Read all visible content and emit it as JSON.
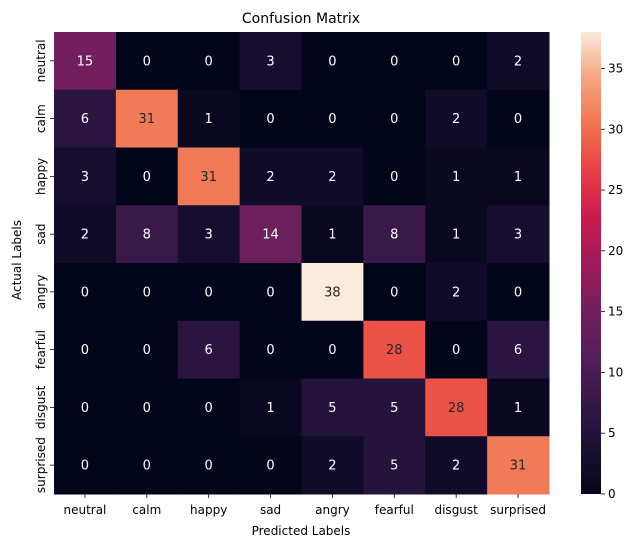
{
  "chart_data": {
    "type": "heatmap",
    "title": "Confusion Matrix",
    "xlabel": "Predicted Labels",
    "ylabel": "Actual Labels",
    "x_categories": [
      "neutral",
      "calm",
      "happy",
      "sad",
      "angry",
      "fearful",
      "disgust",
      "surprised"
    ],
    "y_categories": [
      "neutral",
      "calm",
      "happy",
      "sad",
      "angry",
      "fearful",
      "disgust",
      "surprised"
    ],
    "values": [
      [
        15,
        0,
        0,
        3,
        0,
        0,
        0,
        2
      ],
      [
        6,
        31,
        1,
        0,
        0,
        0,
        2,
        0
      ],
      [
        3,
        0,
        31,
        2,
        2,
        0,
        1,
        1
      ],
      [
        2,
        8,
        3,
        14,
        1,
        8,
        1,
        3
      ],
      [
        0,
        0,
        0,
        0,
        38,
        0,
        2,
        0
      ],
      [
        0,
        0,
        6,
        0,
        0,
        28,
        0,
        6
      ],
      [
        0,
        0,
        0,
        1,
        5,
        5,
        28,
        1
      ],
      [
        0,
        0,
        0,
        0,
        2,
        5,
        2,
        31
      ]
    ],
    "colorbar": {
      "min": 0,
      "max": 38,
      "ticks": [
        0,
        5,
        10,
        15,
        20,
        25,
        30,
        35
      ],
      "colormap": "rocket"
    }
  }
}
